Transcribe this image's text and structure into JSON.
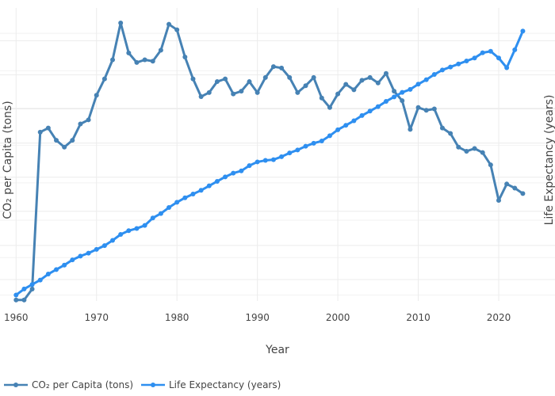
{
  "chart_data": {
    "type": "line",
    "title": "",
    "xlabel": "Year",
    "ylabel_left": "CO₂ per Capita (tons)",
    "ylabel_right": "Life Expectancy (years)",
    "x_ticks": [
      1960,
      1970,
      1980,
      1990,
      2000,
      2010,
      2020
    ],
    "xlim": [
      1958,
      2027
    ],
    "ylim_left": [
      0.93,
      22.4
    ],
    "ylim_right": [
      49.2,
      88.4
    ],
    "grid": true,
    "legend_position": "bottom-left",
    "series": [
      {
        "name": "CO₂ per Capita (tons)",
        "axis": "left",
        "color": "#4682b4",
        "x": [
          1960,
          1961,
          1962,
          1963,
          1964,
          1965,
          1966,
          1967,
          1968,
          1969,
          1970,
          1971,
          1972,
          1973,
          1974,
          1975,
          1976,
          1977,
          1978,
          1979,
          1980,
          1981,
          1982,
          1983,
          1984,
          1985,
          1986,
          1987,
          1988,
          1989,
          1990,
          1991,
          1992,
          1993,
          1994,
          1995,
          1996,
          1997,
          1998,
          1999,
          2000,
          2001,
          2002,
          2003,
          2004,
          2005,
          2006,
          2007,
          2008,
          2009,
          2010,
          2011,
          2012,
          2013,
          2014,
          2015,
          2016,
          2017,
          2018,
          2019,
          2020,
          2021,
          2022,
          2023
        ],
        "values": [
          1.0,
          1.0,
          1.8,
          13.3,
          13.6,
          12.7,
          12.2,
          12.7,
          13.9,
          14.2,
          16.0,
          17.2,
          18.6,
          21.3,
          19.1,
          18.4,
          18.6,
          18.5,
          19.3,
          21.2,
          20.8,
          18.8,
          17.2,
          15.9,
          16.2,
          17.0,
          17.2,
          16.1,
          16.3,
          17.0,
          16.2,
          17.3,
          18.1,
          18.0,
          17.3,
          16.2,
          16.7,
          17.3,
          15.8,
          15.1,
          16.1,
          16.8,
          16.4,
          17.1,
          17.3,
          16.9,
          17.6,
          16.3,
          15.6,
          13.5,
          15.1,
          14.9,
          15.0,
          13.6,
          13.2,
          12.2,
          11.9,
          12.1,
          11.8,
          10.9,
          8.3,
          9.5,
          9.2,
          8.8
        ]
      },
      {
        "name": "Life Expectancy (years)",
        "axis": "right",
        "color": "#2e8ff0",
        "x": [
          1960,
          1961,
          1962,
          1963,
          1964,
          1965,
          1966,
          1967,
          1968,
          1969,
          1970,
          1971,
          1972,
          1973,
          1974,
          1975,
          1976,
          1977,
          1978,
          1979,
          1980,
          1981,
          1982,
          1983,
          1984,
          1985,
          1986,
          1987,
          1988,
          1989,
          1990,
          1991,
          1992,
          1993,
          1994,
          1995,
          1996,
          1997,
          1998,
          1999,
          2000,
          2001,
          2002,
          2003,
          2004,
          2005,
          2006,
          2007,
          2008,
          2009,
          2010,
          2011,
          2012,
          2013,
          2014,
          2015,
          2016,
          2017,
          2018,
          2019,
          2020,
          2021,
          2022,
          2023
        ],
        "values": [
          50.0,
          50.8,
          51.4,
          52.0,
          52.8,
          53.4,
          54.0,
          54.7,
          55.2,
          55.6,
          56.1,
          56.6,
          57.3,
          58.1,
          58.6,
          58.9,
          59.3,
          60.3,
          60.9,
          61.7,
          62.4,
          63.0,
          63.5,
          64.0,
          64.6,
          65.2,
          65.8,
          66.3,
          66.6,
          67.3,
          67.8,
          68.0,
          68.1,
          68.5,
          69.0,
          69.4,
          69.9,
          70.3,
          70.6,
          71.3,
          72.1,
          72.7,
          73.3,
          74.0,
          74.6,
          75.2,
          75.9,
          76.5,
          77.1,
          77.5,
          78.2,
          78.8,
          79.5,
          80.1,
          80.5,
          80.9,
          81.3,
          81.7,
          82.4,
          82.6,
          81.7,
          80.4,
          82.8,
          85.3
        ]
      }
    ]
  }
}
